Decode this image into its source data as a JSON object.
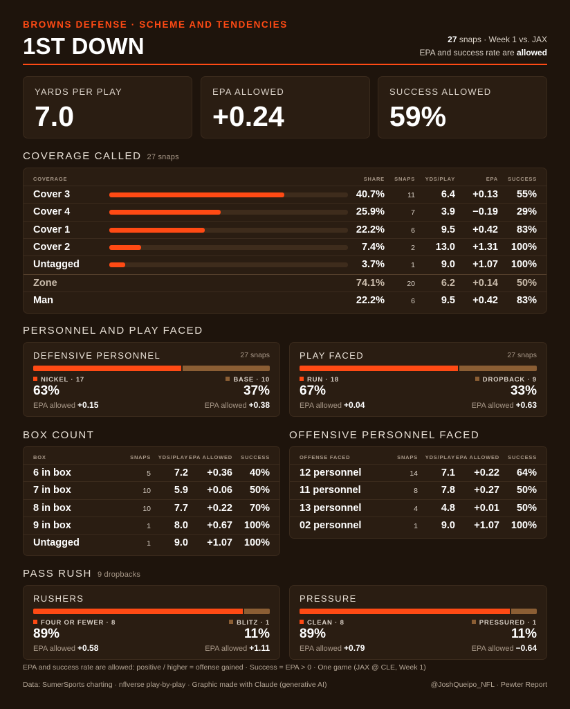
{
  "header": {
    "kicker": "BROWNS DEFENSE · SCHEME AND TENDENCIES",
    "title": "1ST DOWN",
    "snaps_count": "27",
    "snaps_rest": " snaps · Week 1 vs. JAX",
    "note_prefix": "EPA and success rate are ",
    "note_bold": "allowed"
  },
  "kpis": [
    {
      "label": "YARDS PER PLAY",
      "value": "7.0"
    },
    {
      "label": "EPA ALLOWED",
      "value": "+0.24"
    },
    {
      "label": "SUCCESS ALLOWED",
      "value": "59%"
    }
  ],
  "coverage": {
    "title": "COVERAGE CALLED",
    "sub": "27 snaps",
    "headers": {
      "name": "COVERAGE",
      "share": "SHARE",
      "snaps": "SNAPS",
      "ypp": "YDS/PLAY",
      "epa": "EPA",
      "success": "SUCCESS"
    },
    "rows": [
      {
        "name": "Cover 3",
        "share": "40.7%",
        "share_value": 40.7,
        "snaps": "11",
        "ypp": "6.4",
        "epa": "+0.13",
        "success": "55%"
      },
      {
        "name": "Cover 4",
        "share": "25.9%",
        "share_value": 25.9,
        "snaps": "7",
        "ypp": "3.9",
        "epa": "−0.19",
        "success": "29%"
      },
      {
        "name": "Cover 1",
        "share": "22.2%",
        "share_value": 22.2,
        "snaps": "6",
        "ypp": "9.5",
        "epa": "+0.42",
        "success": "83%"
      },
      {
        "name": "Cover 2",
        "share": "7.4%",
        "share_value": 7.4,
        "snaps": "2",
        "ypp": "13.0",
        "epa": "+1.31",
        "success": "100%"
      },
      {
        "name": "Untagged",
        "share": "3.7%",
        "share_value": 3.7,
        "snaps": "1",
        "ypp": "9.0",
        "epa": "+1.07",
        "success": "100%"
      }
    ],
    "totals": [
      {
        "name": "Zone",
        "share": "74.1%",
        "snaps": "20",
        "ypp": "6.2",
        "epa": "+0.14",
        "success": "50%"
      },
      {
        "name": "Man",
        "share": "22.2%",
        "snaps": "6",
        "ypp": "9.5",
        "epa": "+0.42",
        "success": "83%"
      }
    ]
  },
  "personnel_section": {
    "title": "PERSONNEL AND PLAY FACED",
    "cards": [
      {
        "title": "DEFENSIVE PERSONNEL",
        "snaps": "27 snaps",
        "left": {
          "label": "NICKEL · 17",
          "pct": "63%",
          "pct_value": 63,
          "epa_label": "EPA allowed ",
          "epa": "+0.15"
        },
        "right": {
          "label": "BASE · 10",
          "pct": "37%",
          "pct_value": 37,
          "epa_label": "EPA allowed ",
          "epa": "+0.38"
        }
      },
      {
        "title": "PLAY FACED",
        "snaps": "27 snaps",
        "left": {
          "label": "RUN · 18",
          "pct": "67%",
          "pct_value": 67,
          "epa_label": "EPA allowed ",
          "epa": "+0.04"
        },
        "right": {
          "label": "DROPBACK · 9",
          "pct": "33%",
          "pct_value": 33,
          "epa_label": "EPA allowed ",
          "epa": "+0.63"
        }
      }
    ]
  },
  "box_count": {
    "title": "BOX COUNT",
    "headers": {
      "name": "BOX",
      "snaps": "SNAPS",
      "ypp": "YDS/PLAY",
      "epa": "EPA ALLOWED",
      "success": "SUCCESS"
    },
    "rows": [
      {
        "name": "6 in box",
        "snaps": "5",
        "ypp": "7.2",
        "epa": "+0.36",
        "success": "40%"
      },
      {
        "name": "7 in box",
        "snaps": "10",
        "ypp": "5.9",
        "epa": "+0.06",
        "success": "50%"
      },
      {
        "name": "8 in box",
        "snaps": "10",
        "ypp": "7.7",
        "epa": "+0.22",
        "success": "70%"
      },
      {
        "name": "9 in box",
        "snaps": "1",
        "ypp": "8.0",
        "epa": "+0.67",
        "success": "100%"
      },
      {
        "name": "Untagged",
        "snaps": "1",
        "ypp": "9.0",
        "epa": "+1.07",
        "success": "100%"
      }
    ]
  },
  "offense_faced": {
    "title": "OFFENSIVE PERSONNEL FACED",
    "headers": {
      "name": "OFFENSE FACED",
      "snaps": "SNAPS",
      "ypp": "YDS/PLAY",
      "epa": "EPA ALLOWED",
      "success": "SUCCESS"
    },
    "rows": [
      {
        "name": "12 personnel",
        "snaps": "14",
        "ypp": "7.1",
        "epa": "+0.22",
        "success": "64%"
      },
      {
        "name": "11 personnel",
        "snaps": "8",
        "ypp": "7.8",
        "epa": "+0.27",
        "success": "50%"
      },
      {
        "name": "13 personnel",
        "snaps": "4",
        "ypp": "4.8",
        "epa": "+0.01",
        "success": "50%"
      },
      {
        "name": "02 personnel",
        "snaps": "1",
        "ypp": "9.0",
        "epa": "+1.07",
        "success": "100%"
      }
    ]
  },
  "pass_rush": {
    "title": "PASS RUSH",
    "sub": "9 dropbacks",
    "cards": [
      {
        "title": "RUSHERS",
        "snaps": "",
        "left": {
          "label": "FOUR OR FEWER · 8",
          "pct": "89%",
          "pct_value": 89,
          "epa_label": "EPA allowed ",
          "epa": "+0.58"
        },
        "right": {
          "label": "BLITZ · 1",
          "pct": "11%",
          "pct_value": 11,
          "epa_label": "EPA allowed ",
          "epa": "+1.11"
        }
      },
      {
        "title": "PRESSURE",
        "snaps": "",
        "left": {
          "label": "CLEAN · 8",
          "pct": "89%",
          "pct_value": 89,
          "epa_label": "EPA allowed ",
          "epa": "+0.79"
        },
        "right": {
          "label": "PRESSURED · 1",
          "pct": "11%",
          "pct_value": 11,
          "epa_label": "EPA allowed ",
          "epa": "−0.64"
        }
      }
    ]
  },
  "footer": {
    "note": "EPA and success rate are allowed: positive / higher = offense gained · Success = EPA > 0 · One game (JAX @ CLE, Week 1)",
    "source": "Data: SumerSports charting · nflverse play-by-play · Graphic made with Claude (generative AI)",
    "credit": "@JoshQueipo_NFL · Pewter Report"
  },
  "colors": {
    "accent": "#ff4a14",
    "secondary": "#8b5e34",
    "background": "#1e140c",
    "card": "#2a1d12"
  }
}
